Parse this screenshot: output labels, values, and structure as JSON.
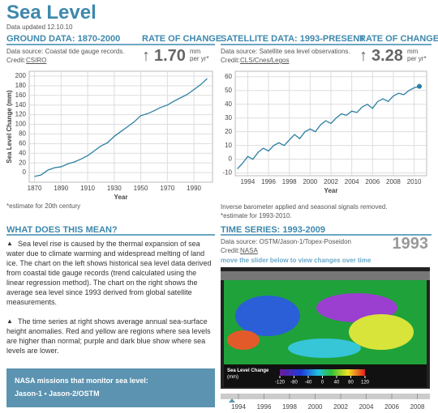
{
  "header": {
    "title": "Sea Level",
    "updated": "Data updated 12.10.10"
  },
  "ground": {
    "heading": "GROUND DATA: 1870-2000",
    "rate_heading": "RATE OF CHANGE",
    "source": "Data source: Coastal tide gauge records.",
    "credit_label": "Credit:",
    "credit": "CSIRO",
    "rate": "1.70",
    "rate_unit_1": "mm",
    "rate_unit_2": "per yr*",
    "note": "*estimate for 20th century"
  },
  "satellite": {
    "heading": "SATELLITE DATA: 1993-PRESENT",
    "rate_heading": "RATE OF CHANGE",
    "source": "Data source: Satellite sea level observations.",
    "credit_label": "Credit:",
    "credit": "CLS/Cnes/Legos",
    "rate": "3.28",
    "rate_unit_1": "mm",
    "rate_unit_2": "per yr*",
    "note_1": "Inverse barometer applied and seasonal signals removed.",
    "note_2": "*estimate for 1993-2010."
  },
  "chart_data": [
    {
      "type": "line",
      "x_label": "Year",
      "y_label": "Sea Level Change (mm)",
      "xlim": [
        1866,
        2004
      ],
      "ylim": [
        -20,
        210
      ],
      "xticks": [
        1870,
        1890,
        1910,
        1930,
        1950,
        1970,
        1990
      ],
      "yticks": [
        0,
        20,
        40,
        60,
        80,
        100,
        120,
        140,
        160,
        180,
        200
      ],
      "grid": true,
      "x": [
        1870,
        1875,
        1880,
        1885,
        1890,
        1895,
        1900,
        1905,
        1910,
        1915,
        1920,
        1925,
        1930,
        1935,
        1940,
        1945,
        1950,
        1955,
        1960,
        1965,
        1970,
        1975,
        1980,
        1985,
        1990,
        1995,
        2000
      ],
      "series": [
        {
          "color": "#2b7fa3",
          "values": [
            -8,
            -5,
            5,
            10,
            12,
            18,
            22,
            28,
            35,
            45,
            55,
            62,
            75,
            85,
            95,
            105,
            118,
            122,
            128,
            135,
            140,
            148,
            155,
            162,
            172,
            182,
            195
          ]
        }
      ]
    },
    {
      "type": "line",
      "x_label": "Year",
      "xlim": [
        1992.8,
        2011.2
      ],
      "ylim": [
        -12,
        64
      ],
      "xticks": [
        1994,
        1996,
        1998,
        2000,
        2002,
        2004,
        2006,
        2008,
        2010
      ],
      "yticks": [
        -10,
        0,
        10,
        20,
        30,
        40,
        50,
        60
      ],
      "grid": true,
      "x": [
        1993,
        1993.5,
        1994,
        1994.5,
        1995,
        1995.5,
        1996,
        1996.5,
        1997,
        1997.5,
        1998,
        1998.5,
        1999,
        1999.5,
        2000,
        2000.5,
        2001,
        2001.5,
        2002,
        2002.5,
        2003,
        2003.5,
        2004,
        2004.5,
        2005,
        2005.5,
        2006,
        2006.5,
        2007,
        2007.5,
        2008,
        2008.5,
        2009,
        2009.5,
        2010,
        2010.5
      ],
      "series": [
        {
          "color": "#2b7fa3",
          "values": [
            -7,
            -3,
            2,
            0,
            5,
            8,
            6,
            10,
            12,
            10,
            14,
            18,
            15,
            20,
            22,
            20,
            25,
            28,
            26,
            30,
            33,
            32,
            35,
            34,
            38,
            40,
            37,
            42,
            44,
            42,
            46,
            48,
            47,
            50,
            52,
            53
          ]
        }
      ]
    }
  ],
  "meaning": {
    "heading": "WHAT DOES THIS MEAN?",
    "p1": "Sea level rise is caused by the thermal expansion of sea water due to climate warming and widespread melting of land ice. The chart on the left shows historical sea level data derived from coastal tide gauge records (trend calculated using the linear regression method). The chart on the right shows the average sea level since 1993 derived from global satellite measurements.",
    "p2": "The time series at right shows average annual sea-surface height anomalies. Red and yellow are regions where sea levels are higher than normal; purple and dark blue show where sea levels are lower."
  },
  "missions": {
    "title": "NASA missions that monitor sea level:",
    "list": "Jason-1 • Jason-2/OSTM"
  },
  "timeseries": {
    "heading": "TIME SERIES: 1993-2009",
    "source": "Data source: OSTM/Jason-1/Topex-Poseidon",
    "credit_label": "Credit:",
    "credit": "NASA",
    "year": "1993",
    "hint": "move the slider below to view changes over time",
    "colorbar_title": "Sea Level Change",
    "colorbar_unit": "(mm)",
    "colorbar_ticks": [
      -120,
      -80,
      -40,
      0,
      40,
      80,
      120
    ],
    "slider_years": [
      "1994",
      "1996",
      "1998",
      "2000",
      "2002",
      "2004",
      "2006",
      "2008"
    ]
  }
}
